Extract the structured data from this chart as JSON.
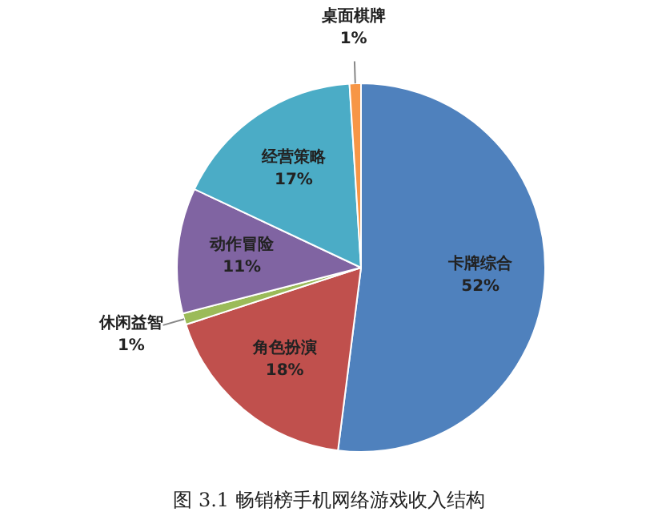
{
  "chart_data": {
    "type": "pie",
    "categories": [
      "卡牌综合",
      "角色扮演",
      "休闲益智",
      "动作冒险",
      "经营策略",
      "桌面棋牌"
    ],
    "values": [
      52,
      18,
      1,
      11,
      17,
      1
    ],
    "value_labels": [
      "52%",
      "18%",
      "1%",
      "11%",
      "17%",
      "1%"
    ],
    "colors": [
      "#4f81bd",
      "#c0504d",
      "#9bbb59",
      "#8064a2",
      "#4bacc6",
      "#f79646"
    ],
    "legend": false,
    "annotations": [
      "图 3.1 畅销榜手机网络游戏收入结构"
    ]
  }
}
